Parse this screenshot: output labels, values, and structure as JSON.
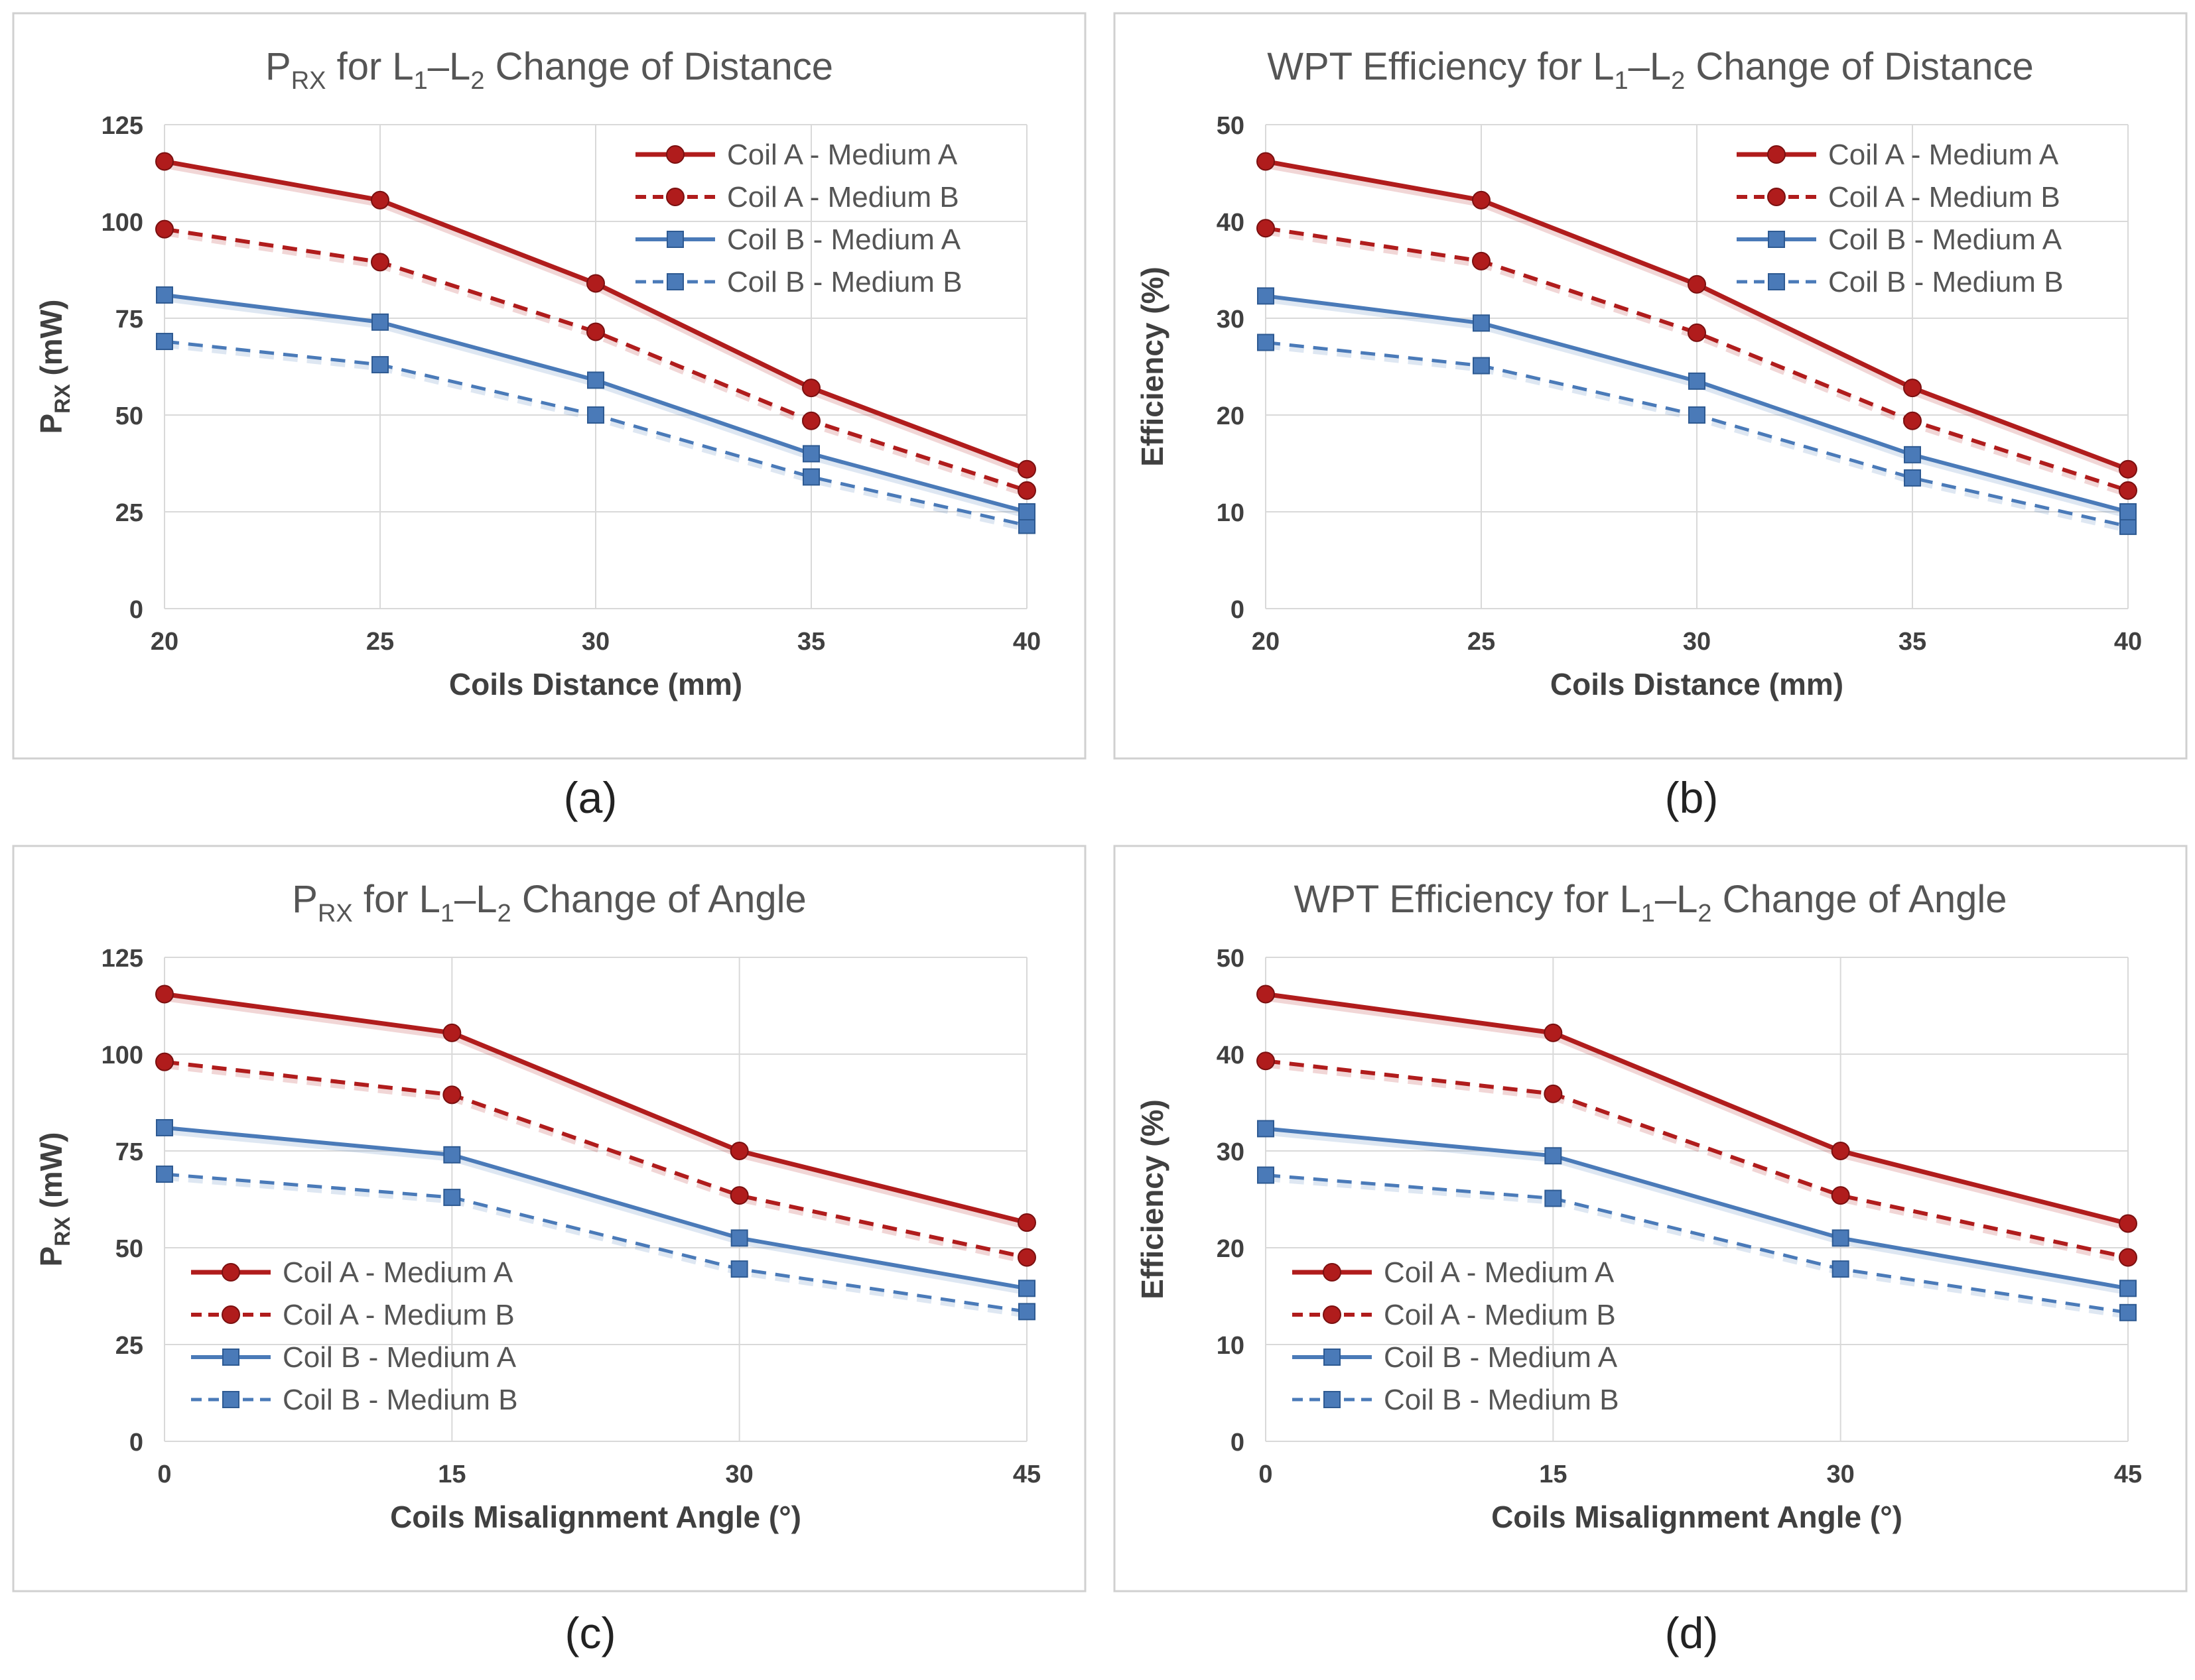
{
  "captions": [
    "(a)",
    "(b)",
    "(c)",
    "(d)"
  ],
  "colors": {
    "red": "#b01c1c",
    "blue": "#4a7ab8",
    "grid": "#d9d9d9",
    "axis_text": "#404040",
    "title_text": "#555555",
    "frame": "#d0d0d0"
  },
  "chart_data": [
    {
      "type": "line",
      "title": {
        "main": "P",
        "sub": "RX",
        "rest": " for L",
        "s1": "1",
        "dash": "–L",
        "s2": "2",
        "tail": " Change of Distance"
      },
      "xlabel": "Coils Distance (mm)",
      "ylabel": {
        "main": "P",
        "sub": "RX",
        "tail": " (mW)"
      },
      "x": [
        20,
        25,
        30,
        35,
        40
      ],
      "xticks": [
        "20",
        "25",
        "30",
        "35",
        "40"
      ],
      "yticks": [
        "0",
        "25",
        "50",
        "75",
        "100",
        "125"
      ],
      "ylim": [
        0,
        125
      ],
      "legend": "top-right",
      "series": [
        {
          "name": "Coil A - Medium A",
          "values": [
            115.5,
            105.5,
            84,
            57,
            36
          ]
        },
        {
          "name": "Coil A - Medium B",
          "values": [
            98,
            89.5,
            71.5,
            48.5,
            30.5
          ]
        },
        {
          "name": "Coil B - Medium A",
          "values": [
            81,
            74,
            59,
            40,
            25
          ]
        },
        {
          "name": "Coil B - Medium B",
          "values": [
            69,
            63,
            50,
            34,
            21.5
          ]
        }
      ]
    },
    {
      "type": "line",
      "title": {
        "main": "WPT Efficiency for L",
        "sub": "1",
        "rest": "–L",
        "s1": "2",
        "dash": "",
        "s2": "",
        "tail": " Change of Distance"
      },
      "xlabel": "Coils Distance (mm)",
      "ylabel": {
        "main": "Efficiency (%)",
        "sub": "",
        "tail": ""
      },
      "x": [
        20,
        25,
        30,
        35,
        40
      ],
      "xticks": [
        "20",
        "25",
        "30",
        "35",
        "40"
      ],
      "yticks": [
        "0",
        "10",
        "20",
        "30",
        "40",
        "50"
      ],
      "ylim": [
        0,
        50
      ],
      "legend": "top-right",
      "series": [
        {
          "name": "Coil A - Medium A",
          "values": [
            46.2,
            42.2,
            33.5,
            22.8,
            14.4
          ]
        },
        {
          "name": "Coil A - Medium B",
          "values": [
            39.3,
            35.9,
            28.5,
            19.4,
            12.2
          ]
        },
        {
          "name": "Coil B - Medium A",
          "values": [
            32.3,
            29.5,
            23.5,
            15.9,
            10
          ]
        },
        {
          "name": "Coil B - Medium B",
          "values": [
            27.5,
            25.1,
            20,
            13.5,
            8.5
          ]
        }
      ]
    },
    {
      "type": "line",
      "title": {
        "main": "P",
        "sub": "RX",
        "rest": " for L",
        "s1": "1",
        "dash": "–L",
        "s2": "2",
        "tail": " Change of Angle"
      },
      "xlabel": "Coils Misalignment Angle (°)",
      "ylabel": {
        "main": "P",
        "sub": "RX",
        "tail": " (mW)"
      },
      "x": [
        0,
        15,
        30,
        45
      ],
      "xticks": [
        "0",
        "15",
        "30",
        "45"
      ],
      "yticks": [
        "0",
        "25",
        "50",
        "75",
        "100",
        "125"
      ],
      "ylim": [
        0,
        125
      ],
      "legend": "bottom-left",
      "series": [
        {
          "name": "Coil A - Medium A",
          "values": [
            115.5,
            105.5,
            75,
            56.5
          ]
        },
        {
          "name": "Coil A - Medium B",
          "values": [
            98,
            89.5,
            63.5,
            47.5
          ]
        },
        {
          "name": "Coil B - Medium A",
          "values": [
            81,
            74,
            52.5,
            39.5
          ]
        },
        {
          "name": "Coil B - Medium B",
          "values": [
            69,
            63,
            44.5,
            33.5
          ]
        }
      ]
    },
    {
      "type": "line",
      "title": {
        "main": "WPT Efficiency for L",
        "sub": "1",
        "rest": "–L",
        "s1": "2",
        "dash": "",
        "s2": "",
        "tail": " Change of Angle"
      },
      "xlabel": "Coils Misalignment Angle (°)",
      "ylabel": {
        "main": "Efficiency (%)",
        "sub": "",
        "tail": ""
      },
      "x": [
        0,
        15,
        30,
        45
      ],
      "xticks": [
        "0",
        "15",
        "30",
        "45"
      ],
      "yticks": [
        "0",
        "10",
        "20",
        "30",
        "40",
        "50"
      ],
      "ylim": [
        0,
        50
      ],
      "legend": "bottom-left",
      "series": [
        {
          "name": "Coil A - Medium A",
          "values": [
            46.2,
            42.2,
            30,
            22.5
          ]
        },
        {
          "name": "Coil A - Medium B",
          "values": [
            39.3,
            35.9,
            25.4,
            19
          ]
        },
        {
          "name": "Coil B - Medium A",
          "values": [
            32.3,
            29.5,
            21,
            15.8
          ]
        },
        {
          "name": "Coil B - Medium B",
          "values": [
            27.5,
            25.1,
            17.8,
            13.3
          ]
        }
      ]
    }
  ]
}
